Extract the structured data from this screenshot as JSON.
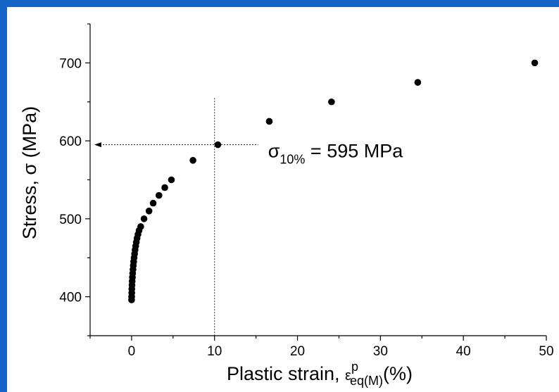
{
  "chart_data": {
    "type": "scatter",
    "xlabel": "Plastic strain, ",
    "xlabel_symbol": "ε",
    "xlabel_sup": "p",
    "xlabel_sub": "eq(M)",
    "xlabel_unit": "(%)",
    "ylabel": "Stress, σ (MPa)",
    "xlim": [
      -5,
      50
    ],
    "ylim": [
      350,
      750
    ],
    "x_ticks": [
      0,
      10,
      20,
      30,
      40,
      50
    ],
    "x_tick_labels": [
      "0",
      "10",
      "20",
      "30",
      "40",
      "50"
    ],
    "y_ticks": [
      400,
      500,
      600,
      700
    ],
    "y_tick_labels": [
      "400",
      "500",
      "600",
      "700"
    ],
    "grid": false,
    "marker_color": "#000000",
    "series": [
      {
        "points": [
          [
            0.0,
            396
          ],
          [
            0.01,
            400
          ],
          [
            0.02,
            405
          ],
          [
            0.03,
            410
          ],
          [
            0.05,
            415
          ],
          [
            0.07,
            420
          ],
          [
            0.1,
            425
          ],
          [
            0.13,
            430
          ],
          [
            0.17,
            435
          ],
          [
            0.21,
            440
          ],
          [
            0.25,
            445
          ],
          [
            0.3,
            450
          ],
          [
            0.36,
            455
          ],
          [
            0.42,
            460
          ],
          [
            0.49,
            465
          ],
          [
            0.57,
            470
          ],
          [
            0.66,
            475
          ],
          [
            0.77,
            480
          ],
          [
            0.9,
            485
          ],
          [
            1.1,
            490
          ],
          [
            1.5,
            500
          ],
          [
            2.1,
            510
          ],
          [
            2.6,
            520
          ],
          [
            3.3,
            530
          ],
          [
            4.0,
            540
          ],
          [
            4.8,
            550
          ],
          [
            7.4,
            575
          ],
          [
            10.4,
            595
          ],
          [
            16.6,
            625
          ],
          [
            24.1,
            650
          ],
          [
            34.5,
            675
          ],
          [
            48.6,
            700
          ]
        ]
      }
    ],
    "annotation": {
      "symbol": "σ",
      "sub": "10%",
      "text": " = 595 MPa",
      "x_value": 10,
      "y_value": 595
    }
  }
}
